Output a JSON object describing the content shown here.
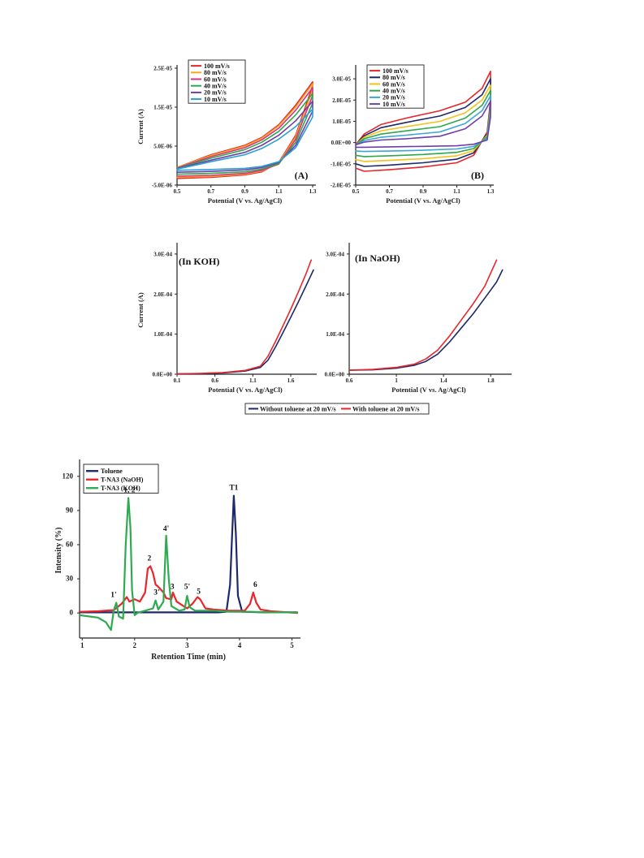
{
  "chart_data": [
    {
      "id": "A",
      "type": "line",
      "panel_label": "(A)",
      "xlabel": "Potential (V vs. Ag/AgCl)",
      "ylabel": "Current  (A)",
      "xlim": [
        0.5,
        1.3
      ],
      "ylim": [
        -5e-06,
        2.5e-05
      ],
      "xticks": [
        {
          "v": 0.5,
          "t": "0.5"
        },
        {
          "v": 0.7,
          "t": "0.7"
        },
        {
          "v": 0.9,
          "t": "0.9"
        },
        {
          "v": 1.1,
          "t": "1.1"
        },
        {
          "v": 1.3,
          "t": "1.3"
        }
      ],
      "yticks": [
        {
          "v": -5e-06,
          "t": "-5.0E-06"
        },
        {
          "v": 5e-06,
          "t": "5.0E-06"
        },
        {
          "v": 1.5e-05,
          "t": "1.5E-05"
        },
        {
          "v": 2.5e-05,
          "t": "2.5E-05"
        }
      ],
      "legend_position": "top-left",
      "series": [
        {
          "name": "100 mV/s",
          "color": "#e8262b",
          "x": [
            0.5,
            0.7,
            0.9,
            1.0,
            1.1,
            1.2,
            1.3,
            1.3,
            1.2,
            1.1,
            1.0,
            0.9,
            0.7,
            0.5
          ],
          "y": [
            -5e-07,
            2.8e-06,
            5.2e-06,
            7.2e-06,
            1.05e-05,
            1.55e-05,
            2.15e-05,
            2.05e-05,
            7.8e-06,
            8e-07,
            -1.6e-06,
            -2.4e-06,
            -3e-06,
            -3.3e-06
          ]
        },
        {
          "name": "80 mV/s",
          "color": "#f5a623",
          "x": [
            0.5,
            0.7,
            0.9,
            1.0,
            1.1,
            1.2,
            1.3,
            1.3,
            1.2,
            1.1,
            1.0,
            0.9,
            0.7,
            0.5
          ],
          "y": [
            -5e-07,
            2.6e-06,
            5e-06,
            7e-06,
            1.02e-05,
            1.5e-05,
            2.1e-05,
            1.95e-05,
            7.4e-06,
            6e-07,
            -1.4e-06,
            -2.2e-06,
            -2.8e-06,
            -3e-06
          ]
        },
        {
          "name": "60 mV/s",
          "color": "#d63384",
          "x": [
            0.5,
            0.7,
            0.9,
            1.0,
            1.1,
            1.2,
            1.3,
            1.3,
            1.2,
            1.1,
            1.0,
            0.9,
            0.7,
            0.5
          ],
          "y": [
            -6e-07,
            2.3e-06,
            4.6e-06,
            6.6e-06,
            9.6e-06,
            1.42e-05,
            2e-05,
            1.8e-05,
            6.8e-06,
            4e-07,
            -1.2e-06,
            -2e-06,
            -2.5e-06,
            -2.7e-06
          ]
        },
        {
          "name": "40 mV/s",
          "color": "#2ea84a",
          "x": [
            0.5,
            0.7,
            0.9,
            1.0,
            1.1,
            1.2,
            1.3,
            1.3,
            1.2,
            1.1,
            1.0,
            0.9,
            0.7,
            0.5
          ],
          "y": [
            -7e-07,
            1.9e-06,
            4.1e-06,
            6e-06,
            8.8e-06,
            1.3e-05,
            1.85e-05,
            1.6e-05,
            6e-06,
            5e-07,
            -9e-07,
            -1.6e-06,
            -2e-06,
            -2.2e-06
          ]
        },
        {
          "name": "20 mV/s",
          "color": "#6f3fa8",
          "x": [
            0.5,
            0.7,
            0.9,
            1.0,
            1.1,
            1.2,
            1.3,
            1.3,
            1.2,
            1.1,
            1.0,
            0.9,
            0.7,
            0.5
          ],
          "y": [
            -8e-07,
            1.4e-06,
            3.4e-06,
            5.2e-06,
            7.8e-06,
            1.15e-05,
            1.65e-05,
            1.4e-05,
            5.2e-06,
            8e-07,
            -5e-07,
            -1.1e-06,
            -1.5e-06,
            -1.7e-06
          ]
        },
        {
          "name": "10 mV/s",
          "color": "#2a9fd6",
          "x": [
            0.5,
            0.7,
            0.9,
            1.0,
            1.1,
            1.2,
            1.3,
            1.3,
            1.2,
            1.1,
            1.0,
            0.9,
            0.7,
            0.5
          ],
          "y": [
            -9e-07,
            1e-06,
            2.8e-06,
            4.4e-06,
            6.8e-06,
            1e-05,
            1.45e-05,
            1.25e-05,
            4.6e-06,
            1e-06,
            -2e-07,
            -7e-07,
            -1e-06,
            -1.2e-06
          ]
        }
      ]
    },
    {
      "id": "B",
      "type": "line",
      "panel_label": "(B)",
      "xlabel": "Potential (V vs. Ag/AgCl)",
      "ylabel": "",
      "xlim": [
        0.5,
        1.3
      ],
      "ylim": [
        -2e-05,
        3.5e-05
      ],
      "xticks": [
        {
          "v": 0.5,
          "t": "0.5"
        },
        {
          "v": 0.7,
          "t": "0.7"
        },
        {
          "v": 0.9,
          "t": "0.9"
        },
        {
          "v": 1.1,
          "t": "1.1"
        },
        {
          "v": 1.3,
          "t": "1.3"
        }
      ],
      "yticks": [
        {
          "v": -2e-05,
          "t": "-2.0E-05"
        },
        {
          "v": -1e-05,
          "t": "-1.0E-05"
        },
        {
          "v": 0,
          "t": "0.0E+00"
        },
        {
          "v": 1e-05,
          "t": "1.0E-05"
        },
        {
          "v": 2e-05,
          "t": "2.0E-05"
        },
        {
          "v": 3e-05,
          "t": "3.0E-05"
        }
      ],
      "legend_position": "top-left",
      "series": [
        {
          "name": "100 mV/s",
          "color": "#e8262b",
          "x": [
            0.5,
            0.55,
            0.65,
            0.8,
            1.0,
            1.15,
            1.25,
            1.3,
            1.3,
            1.28,
            1.2,
            1.1,
            0.9,
            0.7,
            0.55,
            0.5
          ],
          "y": [
            -1e-06,
            4e-06,
            8.5e-06,
            1.15e-05,
            1.5e-05,
            1.9e-05,
            2.55e-05,
            3.35e-05,
            2e-05,
            5e-06,
            -6e-06,
            -9.5e-06,
            -1.15e-05,
            -1.28e-05,
            -1.35e-05,
            -1.2e-05
          ]
        },
        {
          "name": "80 mV/s",
          "color": "#1c2a6b",
          "x": [
            0.5,
            0.55,
            0.65,
            0.8,
            1.0,
            1.15,
            1.25,
            1.3,
            1.3,
            1.28,
            1.2,
            1.1,
            0.9,
            0.7,
            0.55,
            0.5
          ],
          "y": [
            -1e-06,
            3.2e-06,
            7e-06,
            9.5e-06,
            1.25e-05,
            1.65e-05,
            2.25e-05,
            3e-05,
            1.85e-05,
            4.2e-06,
            -4.8e-06,
            -7.8e-06,
            -9.5e-06,
            -1.06e-05,
            -1.12e-05,
            -1e-05
          ]
        },
        {
          "name": "60 mV/s",
          "color": "#f2c218",
          "x": [
            0.5,
            0.55,
            0.65,
            0.8,
            1.0,
            1.15,
            1.25,
            1.3,
            1.3,
            1.28,
            1.2,
            1.1,
            0.9,
            0.7,
            0.55,
            0.5
          ],
          "y": [
            -1e-06,
            2.5e-06,
            5.5e-06,
            7.5e-06,
            1e-05,
            1.4e-05,
            2e-05,
            2.7e-05,
            1.7e-05,
            3.5e-06,
            -3.8e-06,
            -6.2e-06,
            -7.6e-06,
            -8.4e-06,
            -8.9e-06,
            -8e-06
          ]
        },
        {
          "name": "40 mV/s",
          "color": "#2ea84a",
          "x": [
            0.5,
            0.55,
            0.65,
            0.8,
            1.0,
            1.15,
            1.25,
            1.3,
            1.3,
            1.28,
            1.2,
            1.1,
            0.9,
            0.7,
            0.55,
            0.5
          ],
          "y": [
            -1e-06,
            1.8e-06,
            4e-06,
            5.5e-06,
            7.5e-06,
            1.15e-05,
            1.75e-05,
            2.45e-05,
            1.55e-05,
            2.8e-06,
            -2.8e-06,
            -4.6e-06,
            -5.6e-06,
            -6.2e-06,
            -6.6e-06,
            -6e-06
          ]
        },
        {
          "name": "20 mV/s",
          "color": "#3aa6d9",
          "x": [
            0.5,
            0.55,
            0.65,
            0.8,
            1.0,
            1.15,
            1.25,
            1.3,
            1.3,
            1.28,
            1.2,
            1.1,
            0.9,
            0.7,
            0.55,
            0.5
          ],
          "y": [
            -1e-06,
            1e-06,
            2.5e-06,
            3.5e-06,
            5e-06,
            9e-06,
            1.5e-05,
            2.2e-05,
            1.4e-05,
            2e-06,
            -1.8e-06,
            -3e-06,
            -3.6e-06,
            -4e-06,
            -4.2e-06,
            -4e-06
          ]
        },
        {
          "name": "10 mV/s",
          "color": "#6f3fa8",
          "x": [
            0.5,
            0.55,
            0.65,
            0.8,
            1.0,
            1.15,
            1.25,
            1.3,
            1.3,
            1.28,
            1.2,
            1.1,
            0.9,
            0.7,
            0.55,
            0.5
          ],
          "y": [
            -1e-06,
            2e-07,
            1.2e-06,
            1.8e-06,
            3e-06,
            6.5e-06,
            1.25e-05,
            1.95e-05,
            1.2e-05,
            1.2e-06,
            -8e-07,
            -1.5e-06,
            -1.8e-06,
            -2e-06,
            -2.2e-06,
            -2.2e-06
          ]
        }
      ]
    },
    {
      "id": "KOH",
      "type": "line",
      "panel_label": "(In KOH)",
      "xlabel": "Potential (V vs. Ag/AgCl)",
      "ylabel": "Current (A)",
      "xlim": [
        0.1,
        1.9
      ],
      "ylim": [
        0,
        0.00032
      ],
      "xticks": [
        {
          "v": 0.1,
          "t": "0.1"
        },
        {
          "v": 0.6,
          "t": "0.6"
        },
        {
          "v": 1.1,
          "t": "1.1"
        },
        {
          "v": 1.6,
          "t": "1.6"
        }
      ],
      "yticks": [
        {
          "v": 0,
          "t": "0.0E+00"
        },
        {
          "v": 0.0001,
          "t": "1.0E-04"
        },
        {
          "v": 0.0002,
          "t": "2.0E-04"
        },
        {
          "v": 0.0003,
          "t": "3.0E-04"
        }
      ],
      "series": [
        {
          "name": "Without toluene at 20 mV/s",
          "color": "#1c2a6b",
          "x": [
            0.1,
            0.4,
            0.7,
            1.0,
            1.2,
            1.3,
            1.4,
            1.5,
            1.6,
            1.7,
            1.8,
            1.9
          ],
          "y": [
            1e-06,
            1.5e-06,
            3e-06,
            8e-06,
            1.7e-05,
            3.5e-05,
            6.8e-05,
            0.000105,
            0.000142,
            0.00018,
            0.00022,
            0.00026
          ]
        },
        {
          "name": "With toluene at 20 mV/s",
          "color": "#e8262b",
          "x": [
            0.1,
            0.4,
            0.7,
            1.0,
            1.2,
            1.3,
            1.4,
            1.5,
            1.6,
            1.7,
            1.8,
            1.87
          ],
          "y": [
            1e-06,
            2e-06,
            4e-06,
            9.5e-06,
            2e-05,
            4.5e-05,
            8.2e-05,
            0.000122,
            0.000162,
            0.000205,
            0.00025,
            0.000285
          ]
        }
      ]
    },
    {
      "id": "NaOH",
      "type": "line",
      "panel_label": "(In NaOH)",
      "xlabel": "Potential (V vs. Ag/AgCl)",
      "ylabel": "",
      "xlim": [
        0.6,
        1.95
      ],
      "ylim": [
        0,
        0.00032
      ],
      "xticks": [
        {
          "v": 0.6,
          "t": "0.6"
        },
        {
          "v": 1.0,
          "t": "1"
        },
        {
          "v": 1.4,
          "t": "1.4"
        },
        {
          "v": 1.8,
          "t": "1.8"
        }
      ],
      "yticks": [
        {
          "v": 0,
          "t": "0.0E+00"
        },
        {
          "v": 0.0001,
          "t": "1.0E-04"
        },
        {
          "v": 0.0002,
          "t": "2.0E-04"
        },
        {
          "v": 0.0003,
          "t": "3.0E-04"
        }
      ],
      "series": [
        {
          "name": "Without toluene at 20 mV/s",
          "color": "#1c2a6b",
          "x": [
            0.6,
            0.8,
            1.0,
            1.15,
            1.25,
            1.35,
            1.45,
            1.55,
            1.65,
            1.75,
            1.85,
            1.9
          ],
          "y": [
            1e-05,
            1.1e-05,
            1.5e-05,
            2.2e-05,
            3.2e-05,
            5e-05,
            8e-05,
            0.000115,
            0.00015,
            0.00019,
            0.00023,
            0.00026
          ]
        },
        {
          "name": "With toluene at 20 mV/s",
          "color": "#e8262b",
          "x": [
            0.6,
            0.8,
            1.0,
            1.15,
            1.25,
            1.35,
            1.45,
            1.55,
            1.65,
            1.75,
            1.85
          ],
          "y": [
            1e-05,
            1.2e-05,
            1.7e-05,
            2.5e-05,
            3.8e-05,
            6e-05,
            9.5e-05,
            0.000135,
            0.000175,
            0.00022,
            0.000285
          ]
        }
      ]
    },
    {
      "id": "chromatogram",
      "type": "line",
      "xlabel": "Retention  Time (min)",
      "ylabel": "Intensity (%)",
      "xlim": [
        0.95,
        5.1
      ],
      "ylim": [
        -22,
        132
      ],
      "xticks": [
        {
          "v": 1,
          "t": "1"
        },
        {
          "v": 2,
          "t": "2"
        },
        {
          "v": 3,
          "t": "3"
        },
        {
          "v": 4,
          "t": "4"
        },
        {
          "v": 5,
          "t": "5"
        }
      ],
      "yticks": [
        {
          "v": 0,
          "t": "0"
        },
        {
          "v": 30,
          "t": "30"
        },
        {
          "v": 60,
          "t": "60"
        },
        {
          "v": 90,
          "t": "90"
        },
        {
          "v": 120,
          "t": "120"
        }
      ],
      "legend_position": "top-left",
      "series": [
        {
          "name": "Toluene",
          "color": "#1c2a6b",
          "x": [
            0.95,
            2.0,
            3.0,
            3.6,
            3.75,
            3.82,
            3.86,
            3.89,
            3.93,
            3.97,
            4.05,
            4.5,
            5.1
          ],
          "y": [
            0.5,
            0.5,
            0.5,
            0.5,
            1.0,
            25,
            70,
            103,
            70,
            15,
            1.0,
            0.5,
            0.5
          ]
        },
        {
          "name": "T-NA3 (NaOH)",
          "color": "#e8262b",
          "x": [
            0.95,
            1.3,
            1.6,
            1.75,
            1.85,
            1.9,
            2.0,
            2.1,
            2.2,
            2.25,
            2.3,
            2.35,
            2.4,
            2.45,
            2.55,
            2.6,
            2.7,
            2.73,
            2.8,
            2.9,
            3.0,
            3.1,
            3.2,
            3.25,
            3.35,
            3.5,
            3.8,
            4.1,
            4.2,
            4.26,
            4.32,
            4.4,
            4.6,
            5.1
          ],
          "y": [
            1.0,
            1.5,
            2.5,
            8,
            14,
            10,
            12,
            10,
            18,
            39,
            41,
            35,
            25,
            23,
            18,
            13,
            12,
            18,
            10,
            7,
            4,
            8,
            14,
            12,
            4,
            3,
            2,
            2,
            8,
            18,
            9,
            3,
            1.5,
            0
          ]
        },
        {
          "name": "T-NA3 (KOH)",
          "color": "#2eaa50",
          "x": [
            0.95,
            1.3,
            1.45,
            1.55,
            1.6,
            1.65,
            1.7,
            1.78,
            1.83,
            1.88,
            1.92,
            1.95,
            2.0,
            2.05,
            2.2,
            2.35,
            2.4,
            2.45,
            2.55,
            2.6,
            2.65,
            2.7,
            2.85,
            2.95,
            3.0,
            3.05,
            3.15,
            3.5,
            3.8,
            4.2,
            4.6,
            5.1
          ],
          "y": [
            -2,
            -4,
            -8,
            -15,
            2,
            9,
            -3,
            -5,
            60,
            101,
            75,
            20,
            -2,
            0,
            2,
            4,
            11,
            3,
            10,
            68,
            30,
            6,
            2,
            3,
            15,
            5,
            2,
            2,
            1,
            1,
            0.5,
            0.5
          ]
        }
      ],
      "annotations": [
        {
          "t": "1'",
          "x": 1.6,
          "y": 14
        },
        {
          "t": "1, 2'",
          "x": 1.92,
          "y": 106
        },
        {
          "t": "2",
          "x": 2.28,
          "y": 46
        },
        {
          "t": "3'",
          "x": 2.42,
          "y": 16
        },
        {
          "t": "4'",
          "x": 2.6,
          "y": 72
        },
        {
          "t": "3",
          "x": 2.72,
          "y": 21
        },
        {
          "t": "5'",
          "x": 3.0,
          "y": 21
        },
        {
          "t": "5",
          "x": 3.22,
          "y": 17
        },
        {
          "t": "T1",
          "x": 3.89,
          "y": 108
        },
        {
          "t": "6",
          "x": 4.3,
          "y": 23
        }
      ]
    }
  ],
  "shared_legend": {
    "items": [
      {
        "name": "Without toluene at 20 mV/s",
        "color": "#1c2a6b"
      },
      {
        "name": "With toluene at 20 mV/s",
        "color": "#e8262b"
      }
    ]
  }
}
